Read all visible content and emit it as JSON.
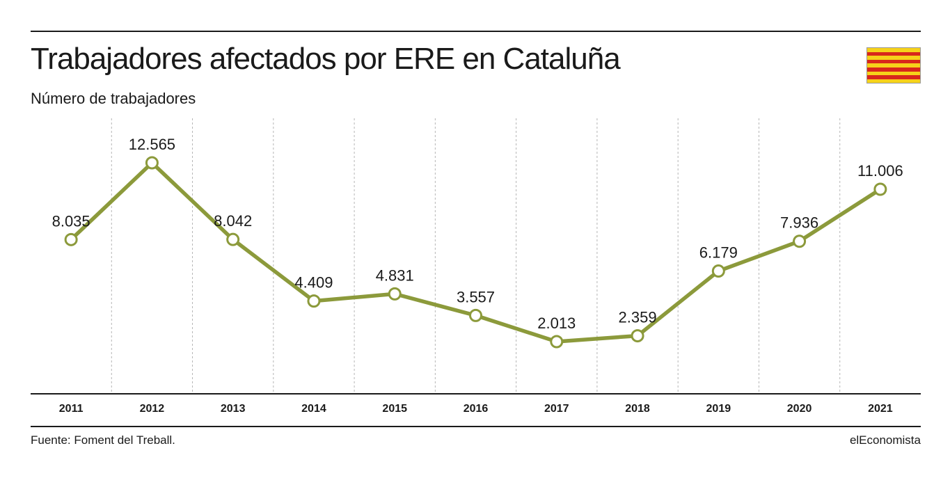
{
  "header": {
    "title": "Trabajadores afectados por ERE en Cataluña",
    "subtitle": "Número de trabajadores"
  },
  "footer": {
    "source": "Fuente: Foment del Treball.",
    "brand": "elEconomista"
  },
  "flag_icon": "catalan-flag-icon",
  "colors": {
    "line": "#8c9a3b",
    "marker_fill": "#ffffff",
    "grid": "#b5b5b5",
    "text": "#1a1a1a",
    "flag_yellow": "#f6d21a",
    "flag_red": "#d8271c"
  },
  "chart_data": {
    "type": "line",
    "title": "Trabajadores afectados por ERE en Cataluña",
    "subtitle": "Número de trabajadores",
    "x": [
      "2011",
      "2012",
      "2013",
      "2014",
      "2015",
      "2016",
      "2017",
      "2018",
      "2019",
      "2020",
      "2021"
    ],
    "series": [
      {
        "values": [
          8035,
          12565,
          8042,
          4409,
          4831,
          3557,
          2013,
          2359,
          6179,
          7936,
          11006
        ],
        "labels": [
          "8.035",
          "12.565",
          "8.042",
          "4.409",
          "4.831",
          "3.557",
          "2.013",
          "2.359",
          "6.179",
          "7.936",
          "11.006"
        ]
      }
    ],
    "grid": "vertical dashed",
    "legend": "none",
    "markers": "hollow circles"
  }
}
